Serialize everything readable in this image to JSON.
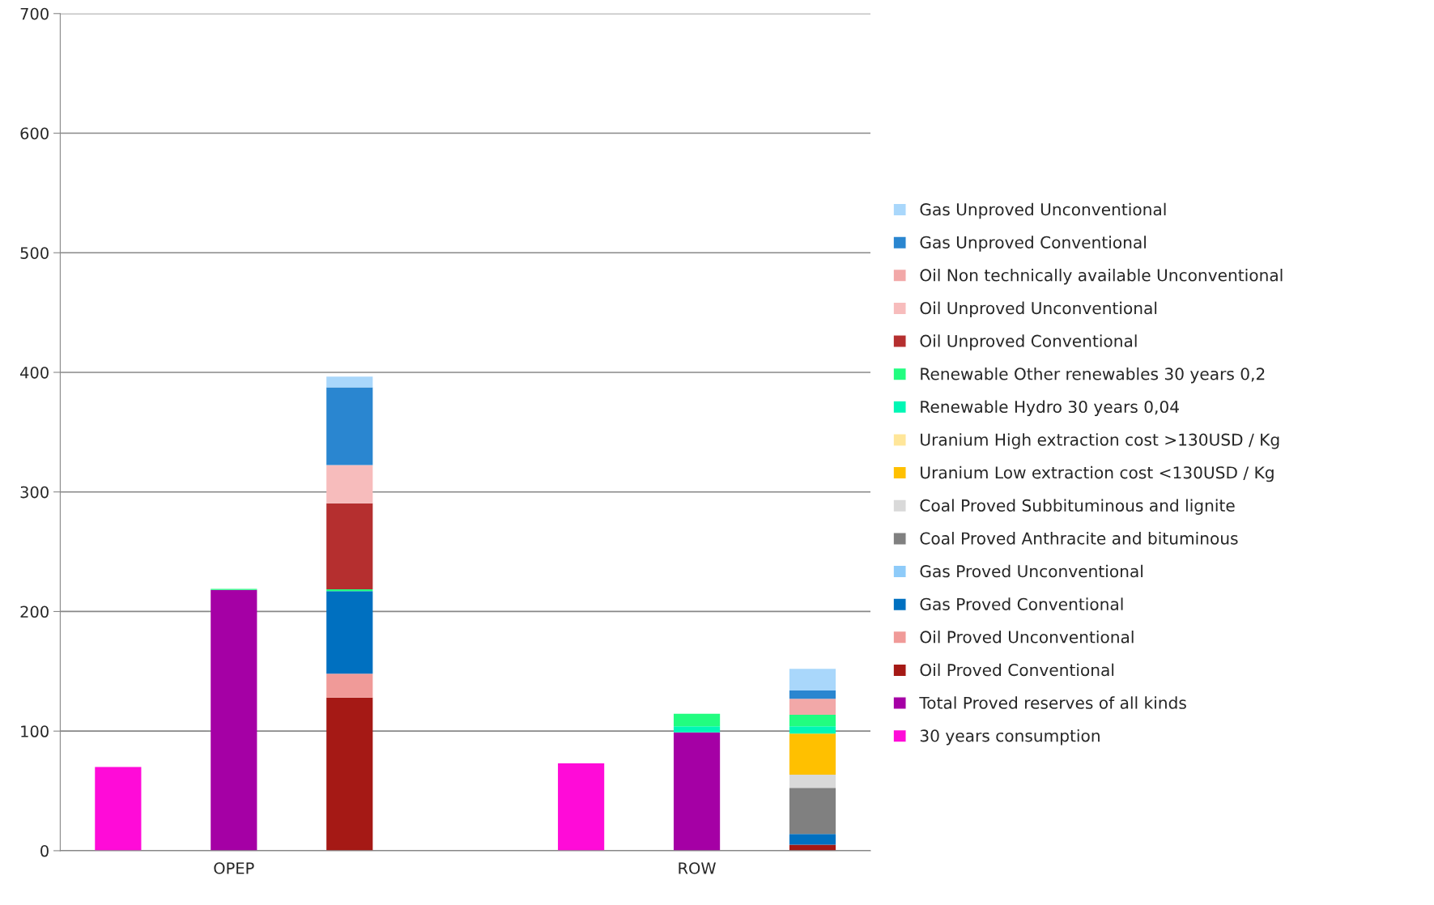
{
  "chart_data": {
    "type": "bar",
    "stacked": true,
    "categories": [
      null,
      "OPEP",
      null,
      null,
      null,
      "ROW",
      null
    ],
    "ylim": [
      0,
      700
    ],
    "yticks": [
      0,
      100,
      200,
      300,
      400,
      500,
      600,
      700
    ],
    "grid": "y",
    "legend": "right",
    "series": [
      {
        "name": "30 years consumption",
        "color": "#ff0bd8",
        "values": [
          70,
          null,
          null,
          null,
          73,
          null,
          null
        ]
      },
      {
        "name": "Total Proved reserves of all kinds",
        "color": "#a500a5",
        "values": [
          null,
          218,
          null,
          null,
          null,
          99,
          null
        ]
      },
      {
        "name": "Oil Proved Conventional",
        "color": "#a51915",
        "values": [
          null,
          null,
          128,
          null,
          null,
          null,
          5
        ]
      },
      {
        "name": "Oil Proved Unconventional",
        "color": "#f09a98",
        "values": [
          null,
          null,
          20,
          null,
          null,
          null,
          null
        ]
      },
      {
        "name": "Gas Proved Conventional",
        "color": "#0070c0",
        "values": [
          null,
          null,
          69,
          null,
          null,
          null,
          9
        ]
      },
      {
        "name": "Gas Proved Unconventional",
        "color": "#8ecbf9",
        "values": [
          null,
          null,
          null,
          null,
          null,
          null,
          null
        ]
      },
      {
        "name": "Coal Proved Anthracite and bituminous",
        "color": "#808080",
        "values": [
          null,
          null,
          null,
          null,
          null,
          null,
          38.5
        ]
      },
      {
        "name": "Coal Proved Subbituminous and lignite",
        "color": "#d9d9d9",
        "values": [
          null,
          null,
          null,
          null,
          null,
          null,
          11
        ]
      },
      {
        "name": "Uranium Low extraction cost <130USD / Kg",
        "color": "#ffc000",
        "values": [
          null,
          null,
          null,
          null,
          null,
          null,
          34.5
        ]
      },
      {
        "name": "Uranium High extraction cost >130USD / Kg",
        "color": "#ffe699",
        "values": [
          null,
          null,
          null,
          null,
          null,
          null,
          null
        ]
      },
      {
        "name": "Renewable Hydro 30 years 0,04",
        "color": "#00f7b5",
        "values": [
          null,
          null,
          null,
          null,
          null,
          5,
          6
        ]
      },
      {
        "name": "Renewable Other renewables 30 years 0,2",
        "color": "#22fd80",
        "values": [
          null,
          1,
          1.5,
          null,
          null,
          10.5,
          9.7
        ]
      },
      {
        "name": "Oil Unproved Conventional",
        "color": "#b52f2f",
        "values": [
          null,
          null,
          72,
          null,
          null,
          null,
          null
        ]
      },
      {
        "name": "Oil Unproved Unconventional",
        "color": "#f7bcbc",
        "values": [
          null,
          null,
          32,
          null,
          null,
          null,
          null
        ]
      },
      {
        "name": "Oil Non technically available Unconventional",
        "color": "#f2a8a8",
        "values": [
          null,
          null,
          null,
          null,
          null,
          null,
          13.3
        ]
      },
      {
        "name": "Gas Unproved Conventional",
        "color": "#2a86d0",
        "values": [
          null,
          null,
          65,
          null,
          null,
          null,
          7
        ]
      },
      {
        "name": "Gas Unproved Unconventional",
        "color": "#a9d7fb",
        "values": [
          null,
          null,
          9,
          null,
          null,
          null,
          18
        ]
      }
    ]
  }
}
